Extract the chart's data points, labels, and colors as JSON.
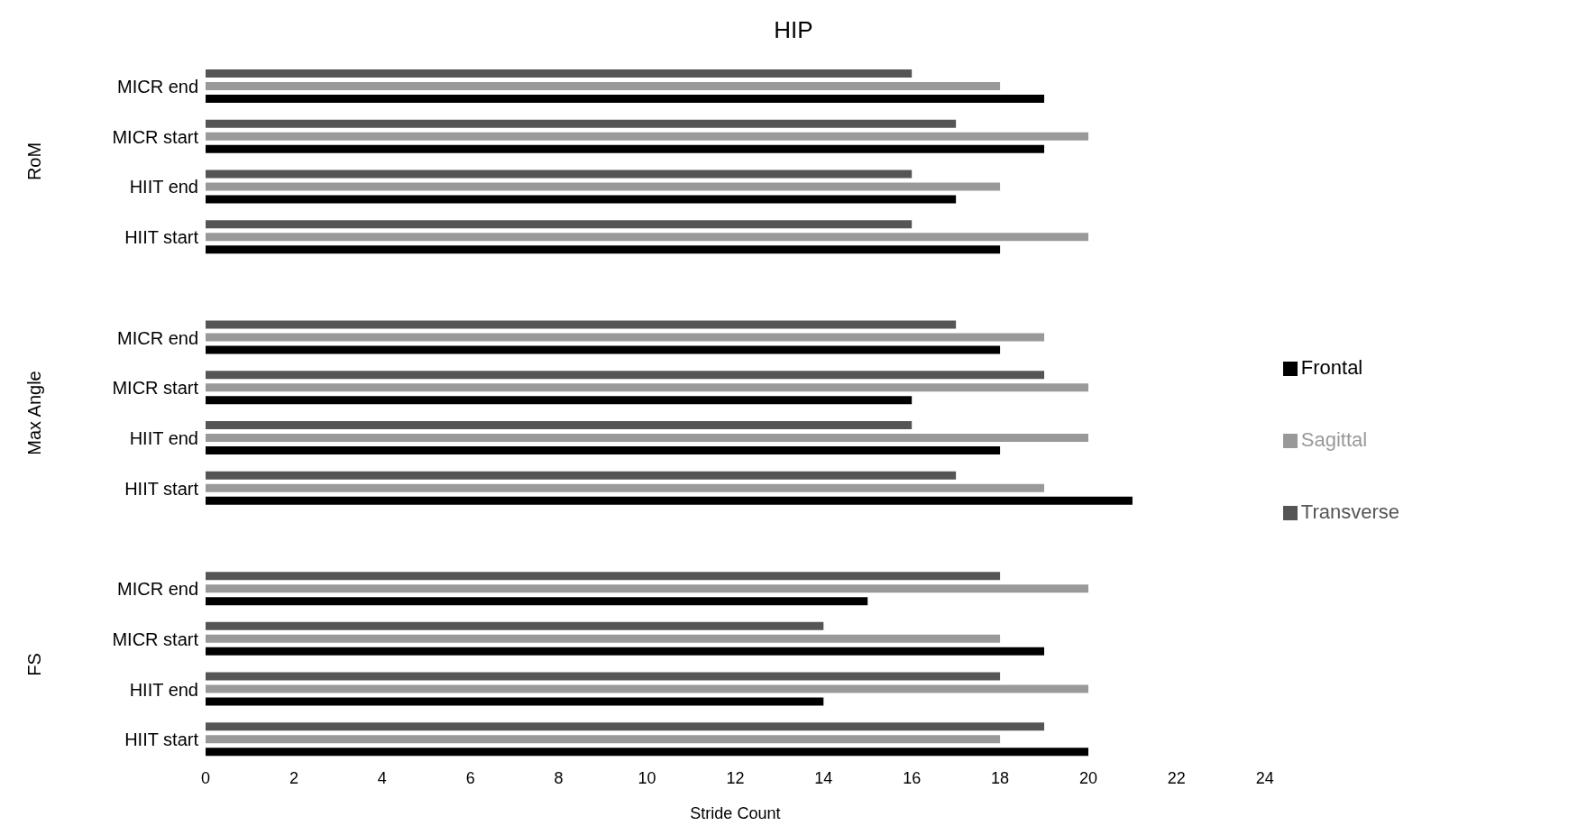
{
  "chart_data": {
    "type": "bar",
    "orientation": "horizontal",
    "title": "HIP",
    "xlabel": "Stride Count",
    "categories": [
      "MICR end",
      "MICR start",
      "HIIT end",
      "HIIT start",
      null,
      "MICR end",
      "MICR start",
      "HIIT end",
      "HIIT start",
      null,
      "MICR end",
      "MICR start",
      "HIIT end",
      "HIIT start"
    ],
    "series": [
      {
        "name": "Transverse",
        "color": "#555555",
        "values": [
          16,
          17,
          16,
          16,
          null,
          17,
          19,
          16,
          17,
          null,
          18,
          14,
          18,
          19
        ]
      },
      {
        "name": "Sagittal",
        "color": "#999999",
        "values": [
          18,
          20,
          18,
          20,
          null,
          19,
          20,
          20,
          19,
          null,
          20,
          18,
          20,
          18
        ]
      },
      {
        "name": "Frontal",
        "color": "#000000",
        "values": [
          19,
          19,
          17,
          18,
          null,
          18,
          16,
          18,
          21,
          null,
          15,
          19,
          14,
          20
        ]
      }
    ],
    "annotations": [
      "RoM",
      "Max Angle",
      "FS"
    ],
    "xlim": [
      0,
      24
    ],
    "xticks": [
      0,
      2,
      4,
      6,
      8,
      10,
      12,
      14,
      16,
      18,
      20,
      22,
      24
    ],
    "grid": false,
    "legend": "right"
  }
}
